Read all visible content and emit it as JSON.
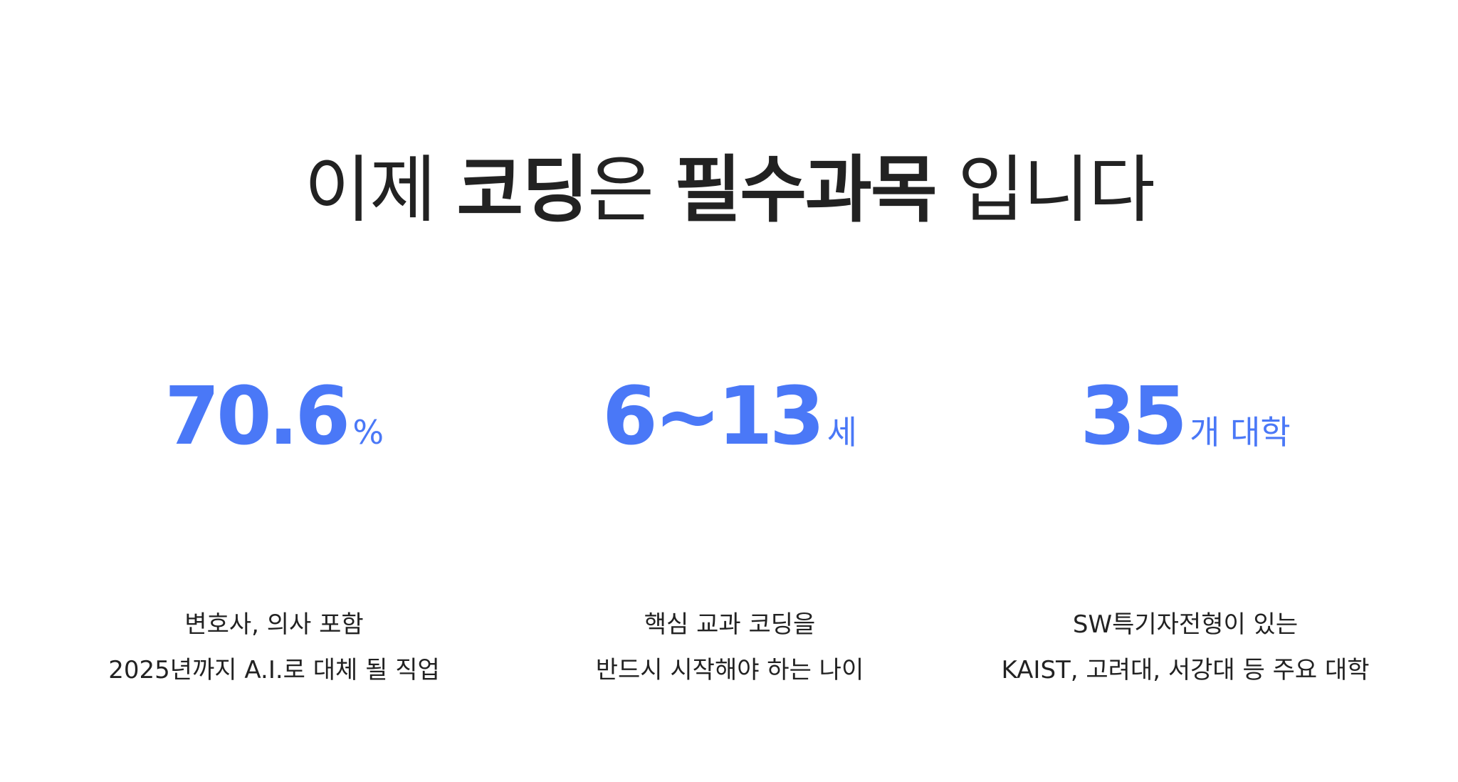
{
  "headline": {
    "part1": "이제 ",
    "part2": "코딩",
    "part3": "은 ",
    "part4": "필수과목",
    "part5": " 입니다"
  },
  "stats": [
    {
      "value": "70.6",
      "unit": "%",
      "line1": "변호사, 의사 포함",
      "line2": "2025년까지 A.I.로 대체 될 직업"
    },
    {
      "value": "6~13",
      "unit": "세",
      "line1": "핵심 교과 코딩을",
      "line2": "반드시 시작해야 하는 나이"
    },
    {
      "value": "35",
      "unit": "개 대학",
      "line1": "SW특기자전형이 있는",
      "line2": "KAIST, 고려대, 서강대 등 주요 대학"
    }
  ],
  "colors": {
    "accent": "#4a78f7",
    "text": "#222222",
    "background": "#ffffff"
  }
}
